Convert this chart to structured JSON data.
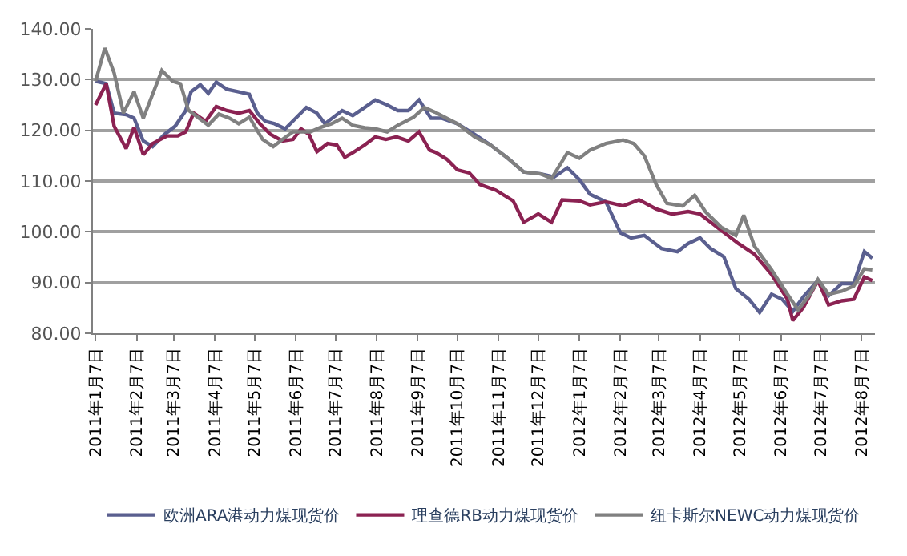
{
  "chart_data": {
    "type": "line",
    "xlim": [
      "2011-01-05",
      "2012-08-17"
    ],
    "xticks": [
      {
        "value": "2011-01-07",
        "label": "2011年1月7日"
      },
      {
        "value": "2011-02-07",
        "label": "2011年2月7日"
      },
      {
        "value": "2011-03-07",
        "label": "2011年3月7日"
      },
      {
        "value": "2011-04-07",
        "label": "2011年4月7日"
      },
      {
        "value": "2011-05-07",
        "label": "2011年5月7日"
      },
      {
        "value": "2011-06-07",
        "label": "2011年6月7日"
      },
      {
        "value": "2011-07-07",
        "label": "2011年7月7日"
      },
      {
        "value": "2011-08-07",
        "label": "2011年8月7日"
      },
      {
        "value": "2011-09-07",
        "label": "2011年9月7日"
      },
      {
        "value": "2011-10-07",
        "label": "2011年10月7日"
      },
      {
        "value": "2011-11-07",
        "label": "2011年11月7日"
      },
      {
        "value": "2011-12-07",
        "label": "2011年12月7日"
      },
      {
        "value": "2012-01-07",
        "label": "2012年1月7日"
      },
      {
        "value": "2012-02-07",
        "label": "2012年2月7日"
      },
      {
        "value": "2012-03-07",
        "label": "2012年3月7日"
      },
      {
        "value": "2012-04-07",
        "label": "2012年4月7日"
      },
      {
        "value": "2012-05-07",
        "label": "2012年5月7日"
      },
      {
        "value": "2012-06-07",
        "label": "2012年6月7日"
      },
      {
        "value": "2012-07-07",
        "label": "2012年7月7日"
      },
      {
        "value": "2012-08-07",
        "label": "2012年8月7日"
      }
    ],
    "ylim": [
      80,
      140
    ],
    "yticks": [
      {
        "value": 80,
        "label": "80.00"
      },
      {
        "value": 90,
        "label": "90.00"
      },
      {
        "value": 100,
        "label": "100.00"
      },
      {
        "value": 110,
        "label": "110.00"
      },
      {
        "value": 120,
        "label": "120.00"
      },
      {
        "value": 130,
        "label": "130.00"
      },
      {
        "value": 140,
        "label": "140.00"
      }
    ],
    "grid": "y",
    "legend": "bottom",
    "marker": "none",
    "line_style": "solid",
    "series": [
      {
        "name": "欧洲ARA港动力煤现货价",
        "color": "#5a5f8f",
        "x": [
          "2011-01-07",
          "2011-01-15",
          "2011-01-21",
          "2011-01-30",
          "2011-02-05",
          "2011-02-12",
          "2011-02-19",
          "2011-02-28",
          "2011-03-08",
          "2011-03-16",
          "2011-03-20",
          "2011-03-27",
          "2011-04-02",
          "2011-04-08",
          "2011-04-16",
          "2011-04-25",
          "2011-05-03",
          "2011-05-09",
          "2011-05-15",
          "2011-05-22",
          "2011-05-30",
          "2011-06-07",
          "2011-06-15",
          "2011-06-23",
          "2011-06-29",
          "2011-07-12",
          "2011-07-20",
          "2011-07-29",
          "2011-08-06",
          "2011-08-15",
          "2011-08-23",
          "2011-08-31",
          "2011-09-08",
          "2011-09-17",
          "2011-09-25",
          "2011-10-07",
          "2011-10-20",
          "2011-11-01",
          "2011-11-14",
          "2011-11-26",
          "2011-12-09",
          "2011-12-19",
          "2011-12-29",
          "2012-01-07",
          "2012-01-15",
          "2012-01-27",
          "2012-02-07",
          "2012-02-15",
          "2012-02-25",
          "2012-03-09",
          "2012-03-21",
          "2012-03-29",
          "2012-04-07",
          "2012-04-15",
          "2012-04-25",
          "2012-05-04",
          "2012-05-14",
          "2012-05-22",
          "2012-05-31",
          "2012-06-08",
          "2012-06-16",
          "2012-06-24",
          "2012-07-05",
          "2012-07-13",
          "2012-07-23",
          "2012-08-01",
          "2012-08-09",
          "2012-08-15"
        ],
        "values": [
          129.7,
          129.2,
          123.4,
          123.1,
          122.4,
          117.9,
          116.8,
          119.2,
          120.8,
          123.9,
          127.6,
          129,
          127.3,
          129.5,
          128.1,
          127.6,
          127.1,
          123.4,
          121.8,
          121.3,
          120.3,
          122.4,
          124.5,
          123.4,
          121.3,
          123.9,
          122.9,
          124.5,
          126,
          125,
          123.9,
          123.9,
          126,
          122.4,
          122.4,
          121.3,
          119.2,
          117.1,
          114.5,
          111.8,
          111.4,
          110.8,
          112.6,
          110.3,
          107.4,
          105.9,
          99.8,
          98.8,
          99.3,
          96.7,
          96.1,
          97.7,
          98.8,
          96.7,
          95.1,
          88.8,
          86.7,
          84.1,
          87.7,
          86.7,
          84.3,
          87.2,
          90.4,
          87.4,
          89.8,
          89.8,
          96.1,
          94.8
        ]
      },
      {
        "name": "理查德RB动力煤现货价",
        "color": "#8b2252",
        "x": [
          "2011-01-07",
          "2011-01-15",
          "2011-01-21",
          "2011-01-30",
          "2011-02-05",
          "2011-02-12",
          "2011-02-19",
          "2011-03-02",
          "2011-03-10",
          "2011-03-16",
          "2011-03-22",
          "2011-03-31",
          "2011-04-08",
          "2011-04-16",
          "2011-04-25",
          "2011-05-03",
          "2011-05-11",
          "2011-05-19",
          "2011-05-28",
          "2011-06-05",
          "2011-06-11",
          "2011-06-17",
          "2011-06-23",
          "2011-07-01",
          "2011-07-08",
          "2011-07-14",
          "2011-07-20",
          "2011-07-29",
          "2011-08-06",
          "2011-08-14",
          "2011-08-22",
          "2011-08-31",
          "2011-09-08",
          "2011-09-16",
          "2011-09-21",
          "2011-09-29",
          "2011-10-07",
          "2011-10-16",
          "2011-10-24",
          "2011-11-05",
          "2011-11-18",
          "2011-11-26",
          "2011-12-07",
          "2011-12-17",
          "2011-12-25",
          "2012-01-07",
          "2012-01-15",
          "2012-01-27",
          "2012-02-09",
          "2012-02-21",
          "2012-03-05",
          "2012-03-17",
          "2012-03-29",
          "2012-04-07",
          "2012-04-15",
          "2012-04-23",
          "2012-05-06",
          "2012-05-18",
          "2012-05-31",
          "2012-06-12",
          "2012-06-16",
          "2012-06-24",
          "2012-07-05",
          "2012-07-13",
          "2012-07-23",
          "2012-08-01",
          "2012-08-09",
          "2012-08-15"
        ],
        "values": [
          125,
          129.2,
          120.8,
          116.4,
          120.6,
          115.2,
          117.4,
          118.9,
          118.9,
          119.7,
          123.4,
          121.8,
          124.7,
          123.9,
          123.4,
          123.9,
          121.3,
          119.2,
          117.9,
          118.2,
          120.3,
          119.2,
          115.8,
          117.4,
          117.1,
          114.7,
          115.6,
          117.1,
          118.7,
          118.2,
          118.7,
          117.9,
          119.7,
          116.1,
          115.6,
          114.3,
          112.2,
          111.6,
          109.3,
          108.2,
          106.1,
          101.9,
          103.5,
          101.9,
          106.3,
          106.1,
          105.3,
          105.9,
          105.1,
          106.3,
          104.5,
          103.5,
          104,
          103.5,
          101.9,
          100.3,
          97.7,
          95.6,
          91.6,
          86.7,
          82.5,
          85.1,
          90.4,
          85.6,
          86.4,
          86.7,
          91.1,
          90.4
        ]
      },
      {
        "name": "纽卡斯尔NEWC动力煤现货价",
        "color": "#808080",
        "x": [
          "2011-01-07",
          "2011-01-14",
          "2011-01-21",
          "2011-01-28",
          "2011-02-05",
          "2011-02-12",
          "2011-02-26",
          "2011-03-06",
          "2011-03-12",
          "2011-03-18",
          "2011-03-26",
          "2011-04-02",
          "2011-04-10",
          "2011-04-18",
          "2011-04-25",
          "2011-05-03",
          "2011-05-13",
          "2011-05-21",
          "2011-05-28",
          "2011-06-05",
          "2011-06-18",
          "2011-06-26",
          "2011-07-04",
          "2011-07-12",
          "2011-07-20",
          "2011-07-29",
          "2011-08-06",
          "2011-08-15",
          "2011-08-23",
          "2011-09-04",
          "2011-09-12",
          "2011-09-20",
          "2011-09-25",
          "2011-10-07",
          "2011-10-20",
          "2011-11-01",
          "2011-11-14",
          "2011-11-26",
          "2011-12-09",
          "2011-12-17",
          "2011-12-29",
          "2012-01-07",
          "2012-01-15",
          "2012-01-27",
          "2012-02-09",
          "2012-02-17",
          "2012-02-25",
          "2012-03-05",
          "2012-03-13",
          "2012-03-25",
          "2012-04-03",
          "2012-04-11",
          "2012-04-23",
          "2012-05-04",
          "2012-05-10",
          "2012-05-18",
          "2012-05-31",
          "2012-06-12",
          "2012-06-20",
          "2012-06-29",
          "2012-07-05",
          "2012-07-13",
          "2012-07-23",
          "2012-08-01",
          "2012-08-09",
          "2012-08-15"
        ],
        "values": [
          129.7,
          136.2,
          131.3,
          123.4,
          127.6,
          122.4,
          131.8,
          129.7,
          129.2,
          124,
          122.4,
          121,
          123.2,
          122.4,
          121.3,
          122.6,
          118.2,
          116.8,
          118.2,
          119.7,
          119.7,
          120.6,
          121.3,
          122.4,
          121,
          120.5,
          120.3,
          119.7,
          121,
          122.6,
          124.5,
          123.6,
          122.9,
          121.3,
          118.7,
          117.1,
          114.5,
          111.8,
          111.4,
          110.5,
          115.6,
          114.5,
          116.1,
          117.4,
          118.1,
          117.4,
          115,
          109.3,
          105.6,
          105.1,
          107.2,
          104,
          100.9,
          99.3,
          103.3,
          97.2,
          92.5,
          87.7,
          84.6,
          87.7,
          90.6,
          87.7,
          88.3,
          89.3,
          92.7,
          92.5
        ]
      }
    ]
  }
}
